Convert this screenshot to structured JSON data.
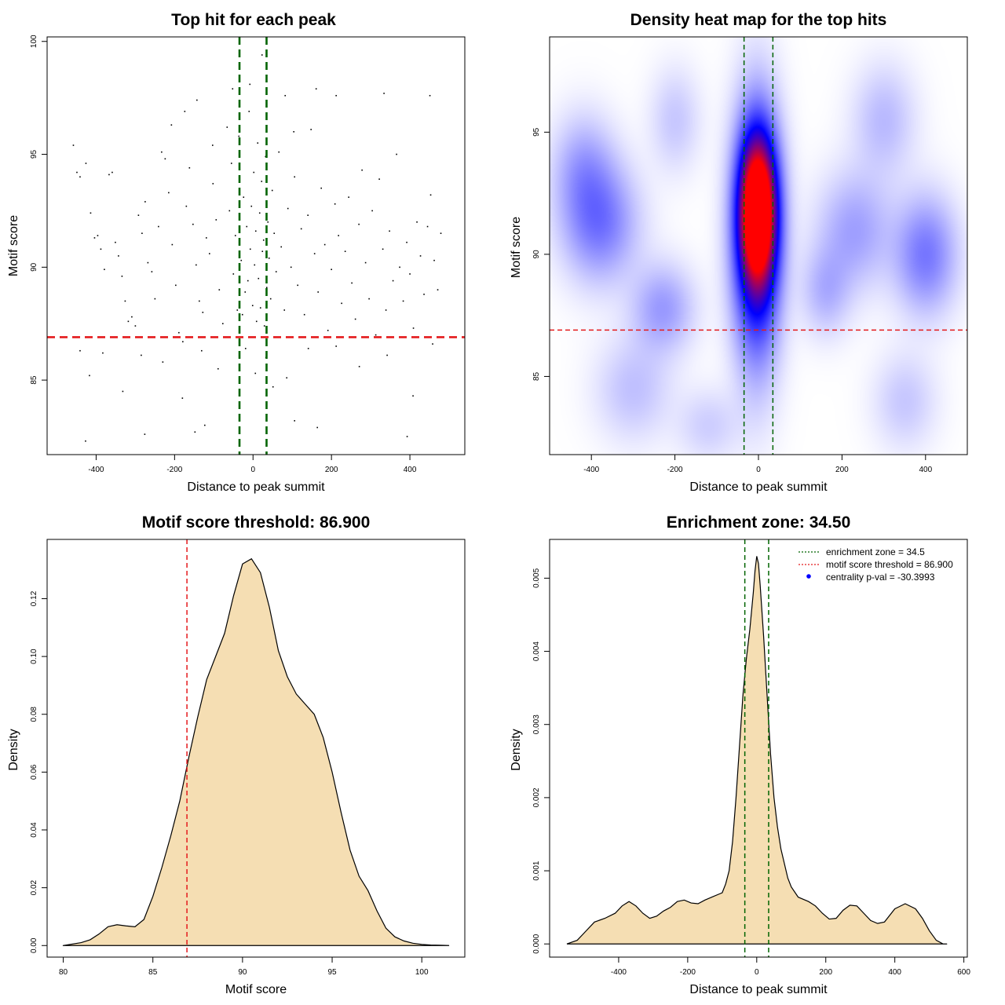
{
  "colors": {
    "threshold_line": "#e41a1c",
    "zone_line": "#006400",
    "fill": "#f5deb3",
    "heat_low": "#ffffff",
    "heat_mid": "#0000ff",
    "heat_high": "#ff0000",
    "point": "#000000",
    "legend_point": "#0000ff"
  },
  "chart_data": [
    {
      "type": "scatter",
      "title": "Top hit for each peak",
      "xlabel": "Distance to peak summit",
      "ylabel": "Motif score",
      "xlim": [
        -525,
        540
      ],
      "ylim": [
        81.7,
        100.2
      ],
      "xticks": [
        -400,
        -200,
        0,
        200,
        400
      ],
      "yticks": [
        85,
        90,
        95,
        100
      ],
      "hlines": [
        86.9
      ],
      "vlines": [
        -34.5,
        34.5
      ],
      "points": [
        [
          -458,
          95.4
        ],
        [
          -449,
          94.2
        ],
        [
          -441,
          94.0
        ],
        [
          -426,
          94.6
        ],
        [
          -414,
          92.4
        ],
        [
          -404,
          91.3
        ],
        [
          -396,
          91.4
        ],
        [
          -388,
          90.8
        ],
        [
          -379,
          89.9
        ],
        [
          -367,
          94.1
        ],
        [
          -359,
          94.2
        ],
        [
          -351,
          91.1
        ],
        [
          -343,
          90.5
        ],
        [
          -334,
          89.6
        ],
        [
          -326,
          88.5
        ],
        [
          -318,
          87.6
        ],
        [
          -309,
          87.8
        ],
        [
          -300,
          87.4
        ],
        [
          -292,
          92.3
        ],
        [
          -283,
          91.5
        ],
        [
          -275,
          92.9
        ],
        [
          -268,
          90.2
        ],
        [
          -258,
          89.8
        ],
        [
          -250,
          88.6
        ],
        [
          -241,
          91.8
        ],
        [
          -233,
          95.1
        ],
        [
          -224,
          94.8
        ],
        [
          -215,
          93.3
        ],
        [
          -206,
          91.0
        ],
        [
          -197,
          89.2
        ],
        [
          -189,
          87.1
        ],
        [
          -179,
          86.7
        ],
        [
          -170,
          92.7
        ],
        [
          -162,
          94.4
        ],
        [
          -153,
          91.9
        ],
        [
          -145,
          90.1
        ],
        [
          -137,
          88.5
        ],
        [
          -128,
          88.0
        ],
        [
          -119,
          91.3
        ],
        [
          -111,
          90.6
        ],
        [
          -102,
          93.7
        ],
        [
          -94,
          92.1
        ],
        [
          -86,
          89.0
        ],
        [
          -77,
          87.5
        ],
        [
          -66,
          96.2
        ],
        [
          -60,
          92.5
        ],
        [
          -55,
          94.6
        ],
        [
          -50,
          89.7
        ],
        [
          -45,
          91.4
        ],
        [
          -40,
          88.1
        ],
        [
          -36,
          95.8
        ],
        [
          -30,
          90.3
        ],
        [
          -27,
          87.9
        ],
        [
          -24,
          93.1
        ],
        [
          -20,
          88.9
        ],
        [
          -16,
          91.8
        ],
        [
          -13,
          89.4
        ],
        [
          -10,
          96.9
        ],
        [
          -7,
          90.8
        ],
        [
          -4,
          92.7
        ],
        [
          -1,
          88.3
        ],
        [
          2,
          94.2
        ],
        [
          4,
          90.1
        ],
        [
          7,
          91.6
        ],
        [
          9,
          87.6
        ],
        [
          12,
          95.5
        ],
        [
          14,
          89.5
        ],
        [
          17,
          92.4
        ],
        [
          19,
          88.2
        ],
        [
          22,
          93.8
        ],
        [
          24,
          90.7
        ],
        [
          27,
          91.2
        ],
        [
          29,
          87.4
        ],
        [
          32,
          94.9
        ],
        [
          35,
          89.1
        ],
        [
          38,
          92.0
        ],
        [
          41,
          90.4
        ],
        [
          45,
          88.6
        ],
        [
          49,
          93.4
        ],
        [
          54,
          91.5
        ],
        [
          59,
          89.8
        ],
        [
          66,
          95.1
        ],
        [
          72,
          90.9
        ],
        [
          80,
          88.1
        ],
        [
          89,
          92.6
        ],
        [
          97,
          90.0
        ],
        [
          106,
          94.0
        ],
        [
          114,
          89.2
        ],
        [
          123,
          91.7
        ],
        [
          131,
          87.9
        ],
        [
          140,
          92.3
        ],
        [
          148,
          96.1
        ],
        [
          157,
          90.6
        ],
        [
          166,
          88.9
        ],
        [
          174,
          93.5
        ],
        [
          183,
          91.0
        ],
        [
          191,
          87.2
        ],
        [
          200,
          89.9
        ],
        [
          209,
          92.8
        ],
        [
          218,
          91.4
        ],
        [
          226,
          88.4
        ],
        [
          235,
          90.7
        ],
        [
          244,
          93.1
        ],
        [
          252,
          89.3
        ],
        [
          261,
          87.7
        ],
        [
          270,
          91.9
        ],
        [
          278,
          94.3
        ],
        [
          287,
          90.2
        ],
        [
          296,
          88.6
        ],
        [
          304,
          92.5
        ],
        [
          313,
          87.0
        ],
        [
          322,
          93.9
        ],
        [
          331,
          90.8
        ],
        [
          339,
          88.1
        ],
        [
          348,
          91.6
        ],
        [
          357,
          89.4
        ],
        [
          366,
          95.0
        ],
        [
          374,
          90.0
        ],
        [
          383,
          88.5
        ],
        [
          392,
          91.1
        ],
        [
          400,
          89.7
        ],
        [
          409,
          87.3
        ],
        [
          418,
          92.0
        ],
        [
          427,
          90.5
        ],
        [
          436,
          88.8
        ],
        [
          445,
          91.8
        ],
        [
          453,
          93.2
        ],
        [
          462,
          90.3
        ],
        [
          471,
          89.0
        ],
        [
          479,
          91.5
        ],
        [
          -441,
          86.3
        ],
        [
          -417,
          85.2
        ],
        [
          -383,
          86.2
        ],
        [
          -332,
          84.5
        ],
        [
          -285,
          86.1
        ],
        [
          -230,
          85.8
        ],
        [
          -180,
          84.2
        ],
        [
          -131,
          86.3
        ],
        [
          -89,
          85.5
        ],
        [
          -19,
          86.4
        ],
        [
          6,
          85.3
        ],
        [
          33,
          86.0
        ],
        [
          51,
          84.7
        ],
        [
          86,
          85.1
        ],
        [
          141,
          86.4
        ],
        [
          212,
          86.5
        ],
        [
          271,
          85.6
        ],
        [
          342,
          86.1
        ],
        [
          408,
          84.3
        ],
        [
          458,
          86.6
        ],
        [
          -427,
          82.3
        ],
        [
          -276,
          82.6
        ],
        [
          -148,
          82.7
        ],
        [
          -123,
          83.0
        ],
        [
          106,
          83.2
        ],
        [
          164,
          82.9
        ],
        [
          393,
          82.5
        ],
        [
          -52,
          97.9
        ],
        [
          -8,
          98.1
        ],
        [
          23,
          99.4
        ],
        [
          82,
          97.6
        ],
        [
          161,
          97.9
        ],
        [
          212,
          97.6
        ],
        [
          334,
          97.7
        ],
        [
          -174,
          96.9
        ],
        [
          -143,
          97.4
        ],
        [
          -208,
          96.3
        ],
        [
          -103,
          95.4
        ],
        [
          104,
          96.0
        ],
        [
          451,
          97.6
        ]
      ]
    },
    {
      "type": "heatmap",
      "title": "Density heat map for the top hits",
      "xlabel": "Distance to peak summit",
      "ylabel": "Motif score",
      "xlim": [
        -500,
        500
      ],
      "ylim": [
        81.8,
        98.9
      ],
      "xticks": [
        -400,
        -200,
        0,
        200,
        400
      ],
      "yticks": [
        85,
        90,
        95
      ],
      "hlines": [
        86.9
      ],
      "vlines": [
        -34.5,
        34.5
      ],
      "hotspots": [
        {
          "x": -2,
          "y": 91.8,
          "sx": 28,
          "sy": 1.9,
          "w": 1.0
        },
        {
          "x": -5,
          "y": 90.8,
          "sx": 38,
          "sy": 3.3,
          "w": 0.55
        },
        {
          "x": -380,
          "y": 91.3,
          "sx": 60,
          "sy": 1.6,
          "w": 0.2
        },
        {
          "x": -230,
          "y": 87.8,
          "sx": 50,
          "sy": 1.2,
          "w": 0.14
        },
        {
          "x": -420,
          "y": 93.5,
          "sx": 50,
          "sy": 1.5,
          "w": 0.12
        },
        {
          "x": 400,
          "y": 90.0,
          "sx": 50,
          "sy": 1.6,
          "w": 0.2
        },
        {
          "x": 230,
          "y": 91.0,
          "sx": 60,
          "sy": 1.6,
          "w": 0.13
        },
        {
          "x": 160,
          "y": 88.5,
          "sx": 40,
          "sy": 1.2,
          "w": 0.1
        },
        {
          "x": 300,
          "y": 95.5,
          "sx": 50,
          "sy": 1.5,
          "w": 0.09
        },
        {
          "x": -300,
          "y": 84.5,
          "sx": 60,
          "sy": 1.4,
          "w": 0.08
        },
        {
          "x": 350,
          "y": 84.0,
          "sx": 50,
          "sy": 1.3,
          "w": 0.07
        },
        {
          "x": -120,
          "y": 83.0,
          "sx": 50,
          "sy": 1.0,
          "w": 0.06
        },
        {
          "x": -200,
          "y": 95.5,
          "sx": 40,
          "sy": 1.4,
          "w": 0.07
        }
      ]
    },
    {
      "type": "area",
      "title": "Motif score threshold: 86.900",
      "xlabel": "Motif score",
      "ylabel": "Density",
      "xlim": [
        79.1,
        102.4
      ],
      "ylim": [
        -0.004,
        0.1405
      ],
      "xticks": [
        80,
        85,
        90,
        95,
        100
      ],
      "yticks": [
        0.0,
        0.02,
        0.04,
        0.06,
        0.08,
        0.1,
        0.12
      ],
      "ytick_labels": [
        "0.00",
        "0.02",
        "0.04",
        "0.06",
        "0.08",
        "0.10",
        "0.12"
      ],
      "vlines": [
        86.9
      ],
      "x": [
        80.0,
        81.0,
        81.5,
        82.0,
        82.5,
        83.0,
        83.5,
        84.0,
        84.5,
        85.0,
        85.5,
        86.0,
        86.5,
        87.0,
        87.5,
        88.0,
        88.5,
        89.0,
        89.5,
        90.0,
        90.5,
        91.0,
        91.5,
        92.0,
        92.5,
        93.0,
        93.5,
        94.0,
        94.5,
        95.0,
        95.5,
        96.0,
        96.5,
        97.0,
        97.5,
        98.0,
        98.5,
        99.0,
        99.5,
        100.0,
        100.5,
        101.0,
        101.5
      ],
      "y": [
        0.0,
        0.001,
        0.002,
        0.004,
        0.0065,
        0.0072,
        0.0068,
        0.0065,
        0.009,
        0.017,
        0.027,
        0.038,
        0.05,
        0.065,
        0.079,
        0.092,
        0.1,
        0.108,
        0.121,
        0.132,
        0.1338,
        0.129,
        0.117,
        0.102,
        0.093,
        0.087,
        0.0835,
        0.08,
        0.072,
        0.06,
        0.046,
        0.033,
        0.024,
        0.019,
        0.012,
        0.006,
        0.003,
        0.0016,
        0.0008,
        0.0004,
        0.0002,
        0.0001,
        0.0
      ]
    },
    {
      "type": "area",
      "title": "Enrichment zone: 34.50",
      "xlabel": "Distance to peak summit",
      "ylabel": "Density",
      "xlim": [
        -600,
        610
      ],
      "ylim": [
        -0.00018,
        0.00553
      ],
      "xticks": [
        -400,
        -200,
        0,
        200,
        400,
        600
      ],
      "yticks": [
        0.0,
        0.001,
        0.002,
        0.003,
        0.004,
        0.005
      ],
      "ytick_labels": [
        "0.000",
        "0.001",
        "0.002",
        "0.003",
        "0.004",
        "0.005"
      ],
      "vlines": [
        -34.5,
        34.5
      ],
      "legend": [
        {
          "label": "enrichment zone = 34.5",
          "style": "dotted-line",
          "color": "#006400"
        },
        {
          "label": "motif score threshold = 86.900",
          "style": "dotted-line",
          "color": "#e41a1c"
        },
        {
          "label": "centrality p-val = -30.3993",
          "style": "point",
          "color": "#0000ff"
        }
      ],
      "legend_position": "top-right",
      "x": [
        -550,
        -520,
        -500,
        -470,
        -440,
        -410,
        -390,
        -370,
        -350,
        -330,
        -310,
        -290,
        -270,
        -250,
        -230,
        -210,
        -190,
        -170,
        -150,
        -130,
        -110,
        -100,
        -90,
        -80,
        -70,
        -60,
        -50,
        -40,
        -30,
        -20,
        -10,
        -5,
        0,
        5,
        10,
        20,
        30,
        40,
        50,
        60,
        70,
        80,
        90,
        100,
        120,
        150,
        170,
        190,
        210,
        230,
        250,
        270,
        290,
        310,
        330,
        350,
        370,
        400,
        430,
        460,
        480,
        500,
        520,
        540,
        550
      ],
      "y": [
        0.0,
        5e-05,
        0.00015,
        0.0003,
        0.00035,
        0.00042,
        0.00052,
        0.00058,
        0.00052,
        0.00042,
        0.00035,
        0.00038,
        0.00045,
        0.0005,
        0.00058,
        0.0006,
        0.00056,
        0.00055,
        0.0006,
        0.00064,
        0.00068,
        0.0007,
        0.00082,
        0.001,
        0.0014,
        0.002,
        0.0027,
        0.0034,
        0.0039,
        0.0043,
        0.0048,
        0.0051,
        0.0053,
        0.0052,
        0.0049,
        0.0042,
        0.0034,
        0.0026,
        0.002,
        0.0016,
        0.0013,
        0.0011,
        0.0009,
        0.00078,
        0.00064,
        0.00058,
        0.00052,
        0.00042,
        0.00034,
        0.00035,
        0.00046,
        0.00053,
        0.00052,
        0.00042,
        0.00032,
        0.00028,
        0.0003,
        0.00048,
        0.00055,
        0.00048,
        0.00035,
        0.00018,
        5e-05,
        0.0,
        0.0
      ]
    }
  ]
}
